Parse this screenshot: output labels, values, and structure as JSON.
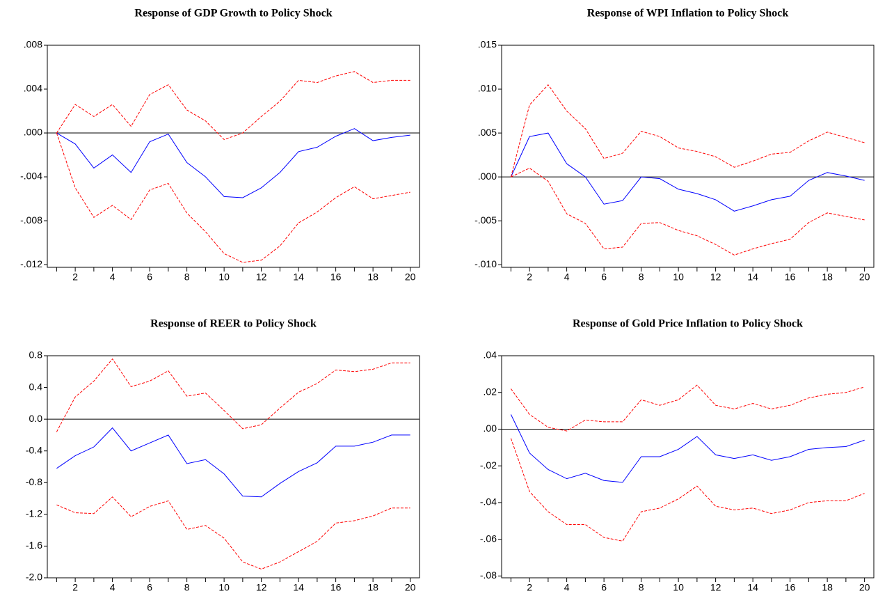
{
  "chart_data": [
    {
      "type": "line",
      "title": "Response of GDP Growth to Policy Shock",
      "categories": [
        null,
        2,
        null,
        4,
        null,
        6,
        null,
        8,
        null,
        10,
        null,
        12,
        null,
        14,
        null,
        16,
        null,
        18,
        null,
        20
      ],
      "ylim": [
        -0.01225,
        0.008
      ],
      "yticks": [
        {
          "value": -0.012,
          "label": "-.012"
        },
        {
          "value": -0.008,
          "label": "-.008"
        },
        {
          "value": -0.004,
          "label": "-.004"
        },
        {
          "value": 0,
          "label": ".000"
        },
        {
          "value": 0.004,
          "label": ".004"
        },
        {
          "value": 0.008,
          "label": ".008"
        }
      ],
      "zero_line": true,
      "series": [
        {
          "color": "#0000ff",
          "dashed": false,
          "values": [
            0,
            -0.001,
            -0.0032,
            -0.002,
            -0.0036,
            -0.0008,
            -0.0001,
            -0.0027,
            -0.004,
            -0.0058,
            -0.0059,
            -0.005,
            -0.0036,
            -0.0017,
            -0.0013,
            -0.0003,
            0.0004,
            -0.0007,
            -0.0004,
            -0.0002
          ]
        },
        {
          "color": "#ff0000",
          "dashed": true,
          "values": [
            0,
            0.0026,
            0.0015,
            0.0026,
            0.0006,
            0.0035,
            0.0044,
            0.0021,
            0.0011,
            -0.0006,
            0,
            0.0015,
            0.0029,
            0.0048,
            0.0046,
            0.0052,
            0.0056,
            0.0046,
            0.0048,
            0.0048
          ]
        },
        {
          "color": "#ff0000",
          "dashed": true,
          "values": [
            0,
            -0.005,
            -0.0077,
            -0.0066,
            -0.0079,
            -0.0052,
            -0.0046,
            -0.0073,
            -0.009,
            -0.011,
            -0.0118,
            -0.0116,
            -0.0103,
            -0.0082,
            -0.0072,
            -0.0059,
            -0.0049,
            -0.006,
            -0.0057,
            -0.0054
          ]
        }
      ]
    },
    {
      "type": "line",
      "title": "Response of WPI Inflation to Policy Shock",
      "categories": [
        null,
        2,
        null,
        4,
        null,
        6,
        null,
        8,
        null,
        10,
        null,
        12,
        null,
        14,
        null,
        16,
        null,
        18,
        null,
        20
      ],
      "ylim": [
        -0.0103,
        0.015
      ],
      "yticks": [
        {
          "value": -0.01,
          "label": "-.010"
        },
        {
          "value": -0.005,
          "label": "-.005"
        },
        {
          "value": 0,
          "label": ".000"
        },
        {
          "value": 0.005,
          "label": ".005"
        },
        {
          "value": 0.01,
          "label": ".010"
        },
        {
          "value": 0.015,
          "label": ".015"
        }
      ],
      "zero_line": true,
      "series": [
        {
          "color": "#0000ff",
          "dashed": false,
          "values": [
            0,
            0.0046,
            0.005,
            0.0015,
            0,
            -0.0031,
            -0.0027,
            0,
            -0.0002,
            -0.0014,
            -0.0019,
            -0.0026,
            -0.0039,
            -0.0033,
            -0.0026,
            -0.0022,
            -0.0004,
            0.0005,
            0.0001,
            -0.0004
          ]
        },
        {
          "color": "#ff0000",
          "dashed": true,
          "values": [
            0,
            0.0082,
            0.0105,
            0.0075,
            0.0055,
            0.0021,
            0.0027,
            0.0052,
            0.0046,
            0.0033,
            0.0029,
            0.0023,
            0.0011,
            0.0018,
            0.0026,
            0.0028,
            0.0041,
            0.0051,
            0.0045,
            0.0039
          ]
        },
        {
          "color": "#ff0000",
          "dashed": true,
          "values": [
            0,
            0.001,
            -0.0005,
            -0.0042,
            -0.0053,
            -0.0082,
            -0.008,
            -0.0053,
            -0.0052,
            -0.0061,
            -0.0067,
            -0.0077,
            -0.0089,
            -0.0082,
            -0.0076,
            -0.0071,
            -0.0052,
            -0.0041,
            -0.0045,
            -0.0049
          ]
        }
      ]
    },
    {
      "type": "line",
      "title": "Response of REER to Policy Shock",
      "categories": [
        null,
        2,
        null,
        4,
        null,
        6,
        null,
        8,
        null,
        10,
        null,
        12,
        null,
        14,
        null,
        16,
        null,
        18,
        null,
        20
      ],
      "ylim": [
        -2.0,
        0.8
      ],
      "yticks": [
        {
          "value": -2,
          "label": "-2.0"
        },
        -1.6,
        -1.2,
        -0.8,
        -0.4,
        {
          "value": 0,
          "label": "0.0"
        },
        0.4,
        0.8
      ],
      "zero_line": true,
      "series": [
        {
          "color": "#0000ff",
          "dashed": false,
          "values": [
            -0.62,
            -0.46,
            -0.35,
            -0.11,
            -0.4,
            -0.3,
            -0.2,
            -0.56,
            -0.51,
            -0.69,
            -0.97,
            -0.98,
            -0.81,
            -0.66,
            -0.55,
            -0.34,
            -0.34,
            -0.29,
            -0.2,
            -0.2
          ]
        },
        {
          "color": "#ff0000",
          "dashed": true,
          "values": [
            -0.16,
            0.28,
            0.48,
            0.76,
            0.41,
            0.48,
            0.61,
            0.29,
            0.33,
            0.11,
            -0.12,
            -0.07,
            0.14,
            0.34,
            0.45,
            0.62,
            0.6,
            0.63,
            0.71,
            0.71
          ]
        },
        {
          "color": "#ff0000",
          "dashed": true,
          "values": [
            -1.08,
            -1.18,
            -1.19,
            -0.98,
            -1.23,
            -1.1,
            -1.03,
            -1.39,
            -1.34,
            -1.5,
            -1.8,
            -1.89,
            -1.8,
            -1.67,
            -1.54,
            -1.31,
            -1.28,
            -1.22,
            -1.12,
            -1.12
          ]
        }
      ]
    },
    {
      "type": "line",
      "title": "Response of Gold Price Inflation to Policy Shock",
      "categories": [
        null,
        2,
        null,
        4,
        null,
        6,
        null,
        8,
        null,
        10,
        null,
        12,
        null,
        14,
        null,
        16,
        null,
        18,
        null,
        20
      ],
      "ylim": [
        -0.081,
        0.04
      ],
      "yticks": [
        {
          "value": -0.08,
          "label": "-.08"
        },
        {
          "value": -0.06,
          "label": "-.06"
        },
        {
          "value": -0.04,
          "label": "-.04"
        },
        {
          "value": -0.02,
          "label": "-.02"
        },
        {
          "value": 0,
          "label": ".00"
        },
        {
          "value": 0.02,
          "label": ".02"
        },
        {
          "value": 0.04,
          "label": ".04"
        }
      ],
      "zero_line": true,
      "series": [
        {
          "color": "#0000ff",
          "dashed": false,
          "values": [
            0.008,
            -0.013,
            -0.022,
            -0.027,
            -0.024,
            -0.028,
            -0.029,
            -0.015,
            -0.015,
            -0.011,
            -0.004,
            -0.014,
            -0.016,
            -0.014,
            -0.017,
            -0.015,
            -0.011,
            -0.01,
            -0.0095,
            -0.006
          ]
        },
        {
          "color": "#ff0000",
          "dashed": true,
          "values": [
            0.022,
            0.008,
            0.001,
            -0.001,
            0.005,
            0.004,
            0.004,
            0.016,
            0.013,
            0.016,
            0.024,
            0.013,
            0.011,
            0.014,
            0.011,
            0.013,
            0.017,
            0.019,
            0.02,
            0.023
          ]
        },
        {
          "color": "#ff0000",
          "dashed": true,
          "values": [
            -0.005,
            -0.034,
            -0.045,
            -0.052,
            -0.052,
            -0.059,
            -0.061,
            -0.045,
            -0.043,
            -0.038,
            -0.031,
            -0.042,
            -0.044,
            -0.043,
            -0.046,
            -0.044,
            -0.04,
            -0.039,
            -0.039,
            -0.035
          ]
        }
      ]
    }
  ]
}
